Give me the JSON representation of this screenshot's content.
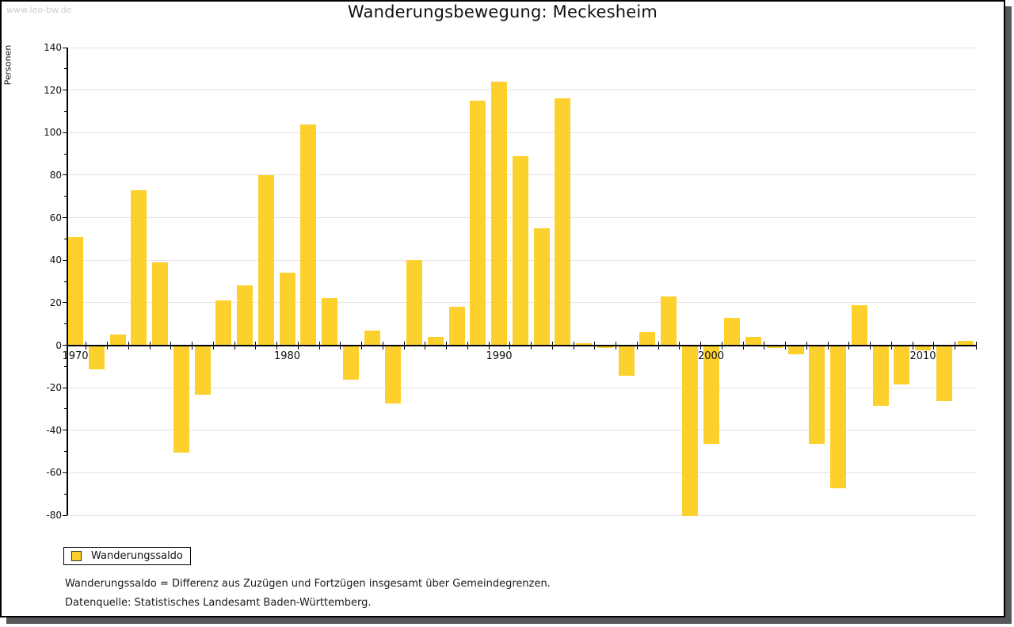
{
  "watermark": "www.leo-bw.de",
  "title": "Wanderungsbewegung: Meckesheim",
  "y_axis_label": "Personen",
  "legend": {
    "label": "Wanderungssaldo"
  },
  "footnotes": [
    "Wanderungssaldo = Differenz aus Zuzügen und Fortzügen insgesamt über Gemeindegrenzen.",
    "Datenquelle: Statistisches Landesamt Baden-Württemberg."
  ],
  "colors": {
    "bar": "#FCD12E",
    "legend_swatch_border": "#333333",
    "gridline": "#e2e2e2",
    "axis": "#000000",
    "watermark": "#cccccc",
    "shadow": "#56575a"
  },
  "chart_data": {
    "type": "bar",
    "title": "Wanderungsbewegung: Meckesheim",
    "ylabel": "Personen",
    "xlabel": "",
    "ylim": [
      -80,
      140
    ],
    "ytick_step": 20,
    "ytick_minor_step": 10,
    "grid": true,
    "legend_position": "bottom-left",
    "series_name": "Wanderungssaldo",
    "xticks_labeled": [
      1970,
      1980,
      1990,
      2000,
      2010
    ],
    "x": [
      1970,
      1971,
      1972,
      1973,
      1974,
      1975,
      1976,
      1977,
      1978,
      1979,
      1980,
      1981,
      1982,
      1983,
      1984,
      1985,
      1986,
      1987,
      1988,
      1989,
      1990,
      1991,
      1992,
      1993,
      1994,
      1995,
      1996,
      1997,
      1998,
      1999,
      2000,
      2001,
      2002,
      2003,
      2004,
      2005,
      2006,
      2007,
      2008,
      2009,
      2010,
      2011,
      2012
    ],
    "values": [
      51,
      -11,
      5,
      73,
      39,
      -50,
      -23,
      21,
      28,
      80,
      34,
      104,
      22,
      -16,
      7,
      -27,
      40,
      4,
      18,
      115,
      124,
      89,
      55,
      116,
      1,
      -1,
      -14,
      6,
      23,
      -80,
      -46,
      13,
      4,
      -1,
      -4,
      -46,
      -67,
      19,
      -28,
      -18,
      -2,
      -26,
      2
    ]
  }
}
